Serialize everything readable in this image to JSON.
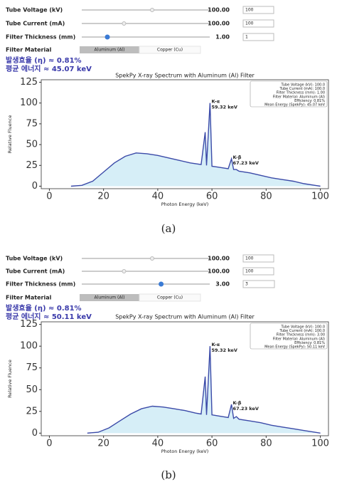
{
  "panels": [
    {
      "controls": [
        {
          "label": "Tube Voltage (kV)",
          "value": "100.00",
          "input": "100"
        },
        {
          "label": "Tube Current (mA)",
          "value": "100.00",
          "input": "100"
        },
        {
          "label": "Filter Thickness (mm)",
          "value": "1.00",
          "input": "1"
        }
      ],
      "material_label": "Filter Material",
      "buttons": [
        "Aluminum (Al)",
        "Copper (Cu)"
      ],
      "efficiency": "발생효율 (η) ≈ 0.81%",
      "mean_energy": "평균 에너지 ≈ 45.07 keV",
      "caption": "(a)"
    },
    {
      "controls": [
        {
          "label": "Tube Voltage (kV)",
          "value": "100.00",
          "input": "100"
        },
        {
          "label": "Tube Current (mA)",
          "value": "100.00",
          "input": "100"
        },
        {
          "label": "Filter Thickness (mm)",
          "value": "3.00",
          "input": "3"
        }
      ],
      "material_label": "Filter Material",
      "buttons": [
        "Aluminum (Al)",
        "Copper (Cu)"
      ],
      "efficiency": "발생효율 (η) ≈ 0.81%",
      "mean_energy": "평균 에너지 ≈ 50.11 keV",
      "caption": "(b)"
    }
  ],
  "chart_data": [
    {
      "type": "line",
      "title": "SpekPy X-ray Spectrum with Aluminum (Al) Filter",
      "x_label": "Photon Energy (keV)",
      "y_label": "Relative Fluence",
      "x": [
        8,
        12,
        16,
        20,
        24,
        28,
        32,
        36,
        40,
        44,
        48,
        52,
        56,
        57.5,
        58,
        59.3,
        60,
        62,
        66,
        67.2,
        68,
        69,
        70,
        74,
        78,
        82,
        86,
        90,
        94,
        98,
        100
      ],
      "series": [
        {
          "color": "#3b4aa8",
          "fill": "#d6eef7",
          "values": [
            0,
            1,
            6,
            17,
            28,
            36,
            40,
            39,
            37,
            34,
            31,
            28,
            26,
            65,
            25,
            100,
            24,
            23,
            21,
            33,
            20,
            20,
            18,
            16,
            13,
            10,
            8,
            6,
            3,
            1,
            0
          ]
        }
      ],
      "xlim": [
        -3,
        103
      ],
      "ylim": [
        -3,
        128
      ],
      "xticks": [
        0,
        20,
        40,
        60,
        80,
        100
      ],
      "yticks": [
        0,
        25,
        50,
        75,
        100,
        125
      ],
      "peaks": [
        {
          "name": "K-α",
          "label": "59.32 keV",
          "color": "#d0203a"
        },
        {
          "name": "K-β",
          "label": "67.23 keV",
          "color": "#2a8a2a"
        }
      ],
      "info_box": [
        "Tube Voltage (kV): 100.0",
        "Tube Current (mA): 100.0",
        "Filter Thickness (mm): 1.00",
        "Filter Material: Aluminum (Al)",
        "Efficiency: 0.81%",
        "Mean Energy (SpekPy): 45.07 keV"
      ]
    },
    {
      "type": "line",
      "title": "SpekPy X-ray Spectrum with Aluminum (Al) Filter",
      "x_label": "Photon Energy (keV)",
      "y_label": "Relative Fluence",
      "x": [
        14,
        18,
        22,
        26,
        30,
        34,
        38,
        42,
        46,
        50,
        54,
        56,
        57.5,
        58,
        59.3,
        60,
        62,
        66,
        67.2,
        68,
        69,
        70,
        74,
        78,
        82,
        86,
        90,
        94,
        98,
        100
      ],
      "series": [
        {
          "color": "#3b4aa8",
          "fill": "#d6eef7",
          "values": [
            0,
            1,
            6,
            14,
            22,
            28,
            31,
            30,
            28,
            26,
            23,
            22,
            65,
            21,
            100,
            21,
            20,
            18,
            33,
            17,
            19,
            16,
            14,
            12,
            9,
            7,
            5,
            3,
            1,
            0
          ]
        }
      ],
      "xlim": [
        -3,
        103
      ],
      "ylim": [
        -3,
        128
      ],
      "xticks": [
        0,
        20,
        40,
        60,
        80,
        100
      ],
      "yticks": [
        0,
        25,
        50,
        75,
        100,
        125
      ],
      "peaks": [
        {
          "name": "K-α",
          "label": "59.32 keV",
          "color": "#d0203a"
        },
        {
          "name": "K-β",
          "label": "67.23 keV",
          "color": "#2a8a2a"
        }
      ],
      "info_box": [
        "Tube Voltage (kV): 100.0",
        "Tube Current (mA): 100.0",
        "Filter Thickness (mm): 3.00",
        "Filter Material: Aluminum (Al)",
        "Efficiency: 0.81%",
        "Mean Energy (SpekPy): 50.11 keV"
      ]
    }
  ]
}
